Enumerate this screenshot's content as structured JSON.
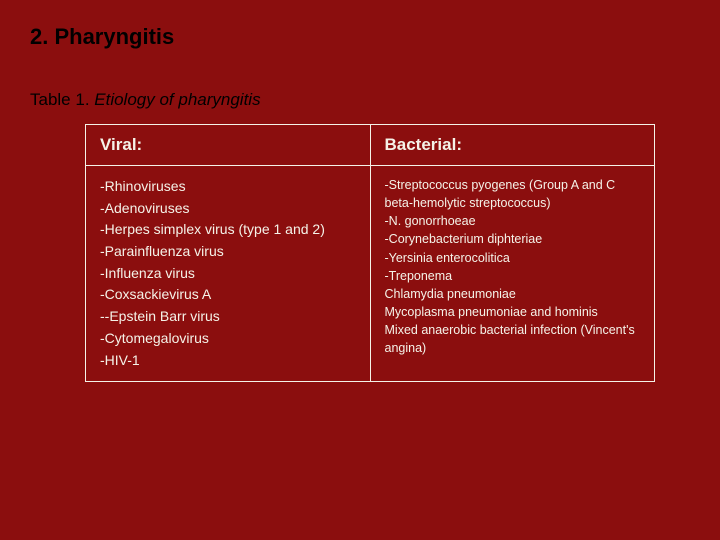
{
  "slide": {
    "title": "2. Pharyngitis",
    "caption_prefix": "Table 1. ",
    "caption_italic": "Etiology of pharyngitis",
    "background_color": "#8b0e0e",
    "title_color": "#000000",
    "table_border_color": "#f5f2e8",
    "text_color": "#f5f2e8"
  },
  "table": {
    "columns": [
      {
        "header": "Viral:"
      },
      {
        "header": "Bacterial:"
      }
    ],
    "viral": {
      "fontsize": 14,
      "items": [
        "-Rhinoviruses",
        "-Adenoviruses",
        "-Herpes simplex virus (type 1 and 2)",
        "-Parainfluenza virus",
        "-Influenza virus",
        "-Coxsackievirus A",
        "--Epstein Barr virus",
        "-Cytomegalovirus",
        "-HIV-1"
      ]
    },
    "bacterial": {
      "fontsize": 12.5,
      "items": [
        "-Streptococcus pyogenes (Group A and C beta-hemolytic streptococcus)",
        "-N. gonorrhoeae",
        "-Corynebacterium diphteriae",
        "-Yersinia enterocolitica",
        "-Treponema",
        "Chlamydia pneumoniae",
        "Mycoplasma pneumoniae and hominis",
        "Mixed anaerobic bacterial infection (Vincent's angina)"
      ]
    }
  }
}
